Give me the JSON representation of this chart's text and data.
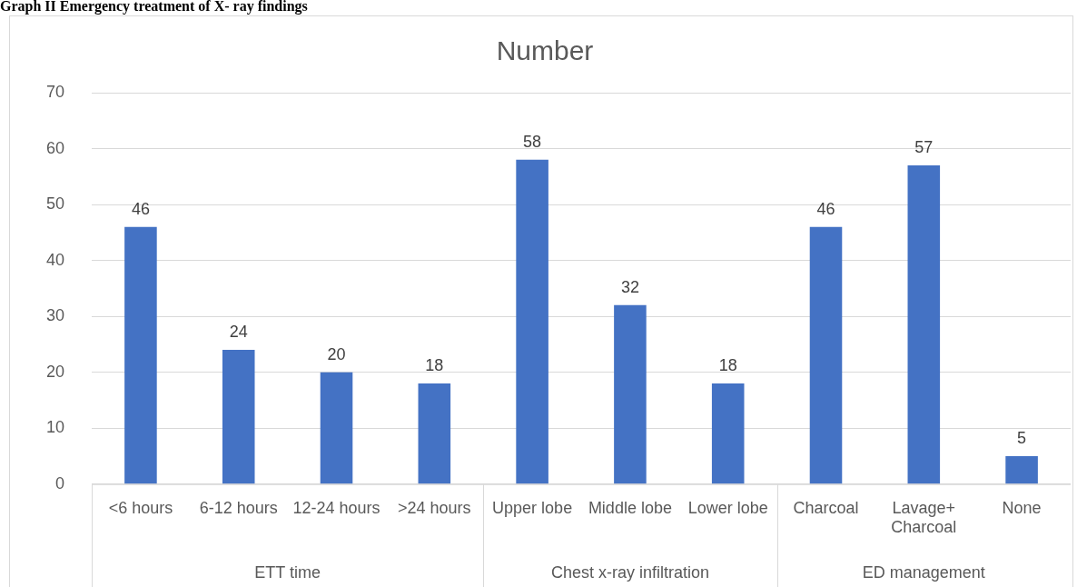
{
  "chart_data": {
    "type": "bar",
    "title": "Number",
    "categories": [
      "<6 hours",
      "6-12 hours",
      "12-24 hours",
      ">24 hours",
      "Upper lobe",
      "Middle lobe",
      "Lower lobe",
      "Charcoal",
      "Lavage+ Charcoal",
      "None"
    ],
    "values": [
      46,
      24,
      20,
      18,
      58,
      32,
      18,
      46,
      57,
      5
    ],
    "color": "#4472c4",
    "ylim": [
      0,
      70
    ],
    "yticks": [
      0,
      10,
      20,
      30,
      40,
      50,
      60,
      70
    ],
    "grid": "y",
    "data_labels": true,
    "legend": false,
    "annotations": [
      "Graph II Emergency treatment of X- ray findings",
      "ETT time",
      "Chest x-ray infiltration",
      "ED management"
    ]
  }
}
